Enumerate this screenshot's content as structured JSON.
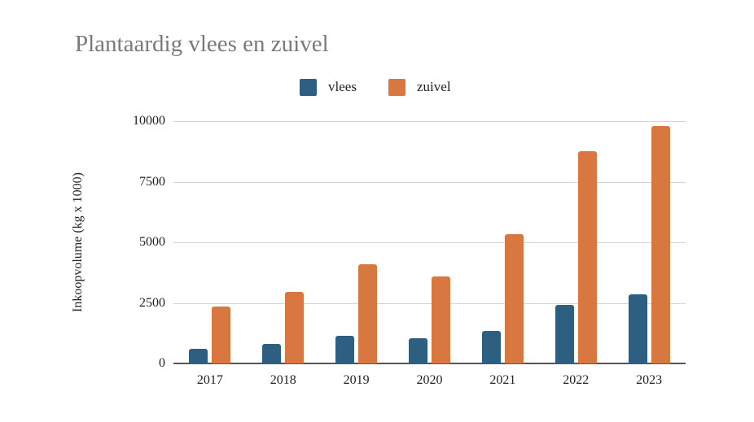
{
  "chart_data": {
    "type": "bar",
    "title": "Plantaardig vlees en zuivel",
    "xlabel": "",
    "ylabel": "Inkoopvolume (kg x 1000)",
    "categories": [
      "2017",
      "2018",
      "2019",
      "2020",
      "2021",
      "2022",
      "2023"
    ],
    "series": [
      {
        "name": "vlees",
        "color": "#2e5f80",
        "values": [
          600,
          800,
          1150,
          1050,
          1350,
          2400,
          2850
        ]
      },
      {
        "name": "zuivel",
        "color": "#d97741",
        "values": [
          2350,
          2950,
          4100,
          3600,
          5350,
          8750,
          9800
        ]
      }
    ],
    "ylim": [
      0,
      10000
    ],
    "yticks": [
      "0",
      "2500",
      "5000",
      "7500",
      "10000"
    ],
    "grid": true,
    "legend_position": "top"
  }
}
